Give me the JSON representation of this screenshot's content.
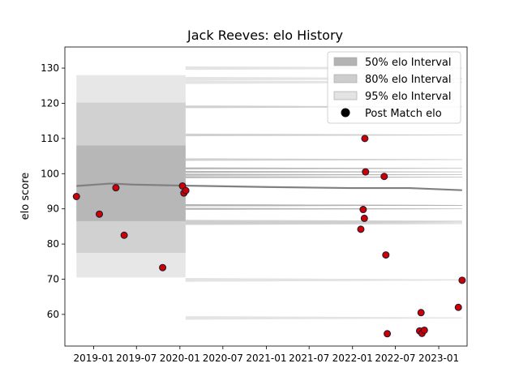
{
  "chart_data": {
    "type": "scatter",
    "title": "Jack Reeves: elo History",
    "xlabel": "",
    "ylabel": "elo score",
    "xlim": [
      "2018-09-01",
      "2023-05-01"
    ],
    "ylim": [
      51,
      136
    ],
    "x_ticks": [
      "2019-01",
      "2019-07",
      "2020-01",
      "2020-07",
      "2021-01",
      "2021-07",
      "2022-01",
      "2022-07",
      "2023-01"
    ],
    "y_ticks": [
      60,
      70,
      80,
      90,
      100,
      110,
      120,
      130
    ],
    "grid": false,
    "legend_position": "top-right",
    "legend": [
      {
        "label": "50% elo Interval",
        "kind": "band",
        "color": "#b3b3b3"
      },
      {
        "label": "80% elo Interval",
        "kind": "band",
        "color": "#cdcdcd"
      },
      {
        "label": "95% elo Interval",
        "kind": "band",
        "color": "#e3e3e3"
      },
      {
        "label": "Post Match elo",
        "kind": "marker",
        "color": "#000000"
      }
    ],
    "colors": {
      "band_50": "#b3b3b3",
      "band_80": "#cdcdcd",
      "band_95": "#e3e3e3",
      "mean_line": "#808080",
      "marker_fill": "#cc0000",
      "marker_edge": "#1a1a3a"
    },
    "mean_elo": [
      {
        "x": "2018-10-20",
        "y": 96.5
      },
      {
        "x": "2019-03-15",
        "y": 97.2
      },
      {
        "x": "2019-06-15",
        "y": 96.9
      },
      {
        "x": "2020-01-15",
        "y": 96.6
      },
      {
        "x": "2021-01-01",
        "y": 96.2
      },
      {
        "x": "2022-01-01",
        "y": 95.9
      },
      {
        "x": "2022-09-01",
        "y": 95.9
      },
      {
        "x": "2023-04-10",
        "y": 95.3
      }
    ],
    "intervals": {
      "early": {
        "x_start": "2018-10-20",
        "x_end": "2020-01-25",
        "p50": [
          86.5,
          108
        ],
        "p80": [
          77.5,
          120.2
        ],
        "p95": [
          70.5,
          128
        ]
      },
      "late": {
        "x_start": "2020-01-25",
        "x_end": "2023-04-10",
        "p50": [
          [
            91,
            101.5
          ],
          [
            91,
            100.5
          ],
          [
            91,
            99.7
          ],
          [
            90,
            99
          ]
        ],
        "p80": [
          [
            86.5,
            119
          ],
          [
            85.8,
            111
          ],
          [
            86.2,
            104
          ]
        ],
        "p95": [
          [
            69.8,
            130
          ],
          [
            69.8,
            127
          ],
          [
            59,
            126
          ]
        ]
      }
    },
    "post_match_elo": [
      {
        "x": "2018-10-20",
        "y": 93.5
      },
      {
        "x": "2019-01-25",
        "y": 88.5
      },
      {
        "x": "2019-04-05",
        "y": 96
      },
      {
        "x": "2019-05-10",
        "y": 82.5
      },
      {
        "x": "2019-10-20",
        "y": 73.3
      },
      {
        "x": "2020-01-12",
        "y": 96.5
      },
      {
        "x": "2020-01-18",
        "y": 94.5
      },
      {
        "x": "2020-01-26",
        "y": 95.2
      },
      {
        "x": "2022-02-05",
        "y": 84.2
      },
      {
        "x": "2022-02-15",
        "y": 89.8
      },
      {
        "x": "2022-02-20",
        "y": 87.3
      },
      {
        "x": "2022-02-22",
        "y": 110
      },
      {
        "x": "2022-02-25",
        "y": 100.5
      },
      {
        "x": "2022-05-15",
        "y": 99.2
      },
      {
        "x": "2022-05-22",
        "y": 76.9
      },
      {
        "x": "2022-05-28",
        "y": 54.5
      },
      {
        "x": "2022-10-12",
        "y": 55.3
      },
      {
        "x": "2022-10-18",
        "y": 60.5
      },
      {
        "x": "2022-10-22",
        "y": 54.6
      },
      {
        "x": "2022-11-01",
        "y": 55.5
      },
      {
        "x": "2023-03-25",
        "y": 62
      },
      {
        "x": "2023-04-10",
        "y": 69.7
      }
    ]
  }
}
